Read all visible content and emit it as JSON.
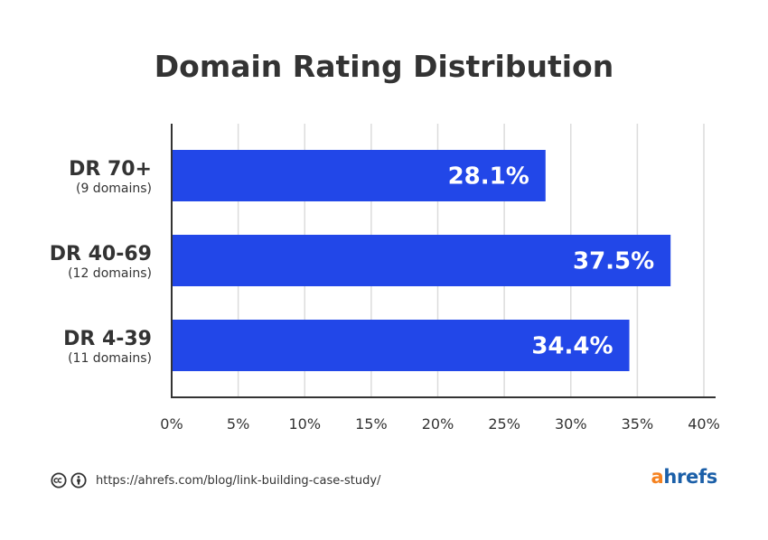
{
  "chart_data": {
    "type": "bar",
    "orientation": "horizontal",
    "title": "Domain Rating Distribution",
    "categories": [
      "DR 70+",
      "DR 40-69",
      "DR 4-39"
    ],
    "category_subtitles": [
      "(9 domains)",
      "(12 domains)",
      "(11 domains)"
    ],
    "values": [
      28.1,
      37.5,
      34.4
    ],
    "value_labels": [
      "28.1%",
      "37.5%",
      "34.4%"
    ],
    "xlim": [
      0,
      40
    ],
    "x_ticks": [
      0,
      5,
      10,
      15,
      20,
      25,
      30,
      35,
      40
    ],
    "x_tick_labels": [
      "0%",
      "5%",
      "10%",
      "15%",
      "20%",
      "25%",
      "30%",
      "35%",
      "40%"
    ],
    "grid": "vertical",
    "bar_color": "#2247e8"
  },
  "footer": {
    "license_icons": [
      "creative-commons-icon",
      "attribution-icon"
    ],
    "source_url": "https://ahrefs.com/blog/link-building-case-study/",
    "brand_first": "a",
    "brand_rest": "hrefs"
  }
}
